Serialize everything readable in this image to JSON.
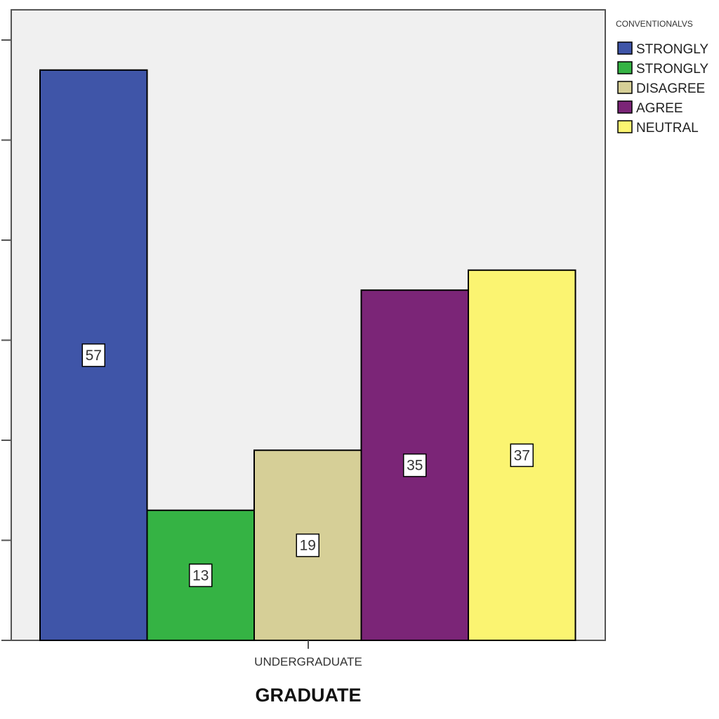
{
  "chart_data": {
    "type": "bar",
    "xlabel": "GRADUATE",
    "ylabel": "",
    "categories": [
      "UNDERGRADUATE"
    ],
    "ylim": [
      0,
      60
    ],
    "y_ticks": [
      0,
      10,
      20,
      30,
      40,
      50,
      60
    ],
    "grid": false,
    "legend_position": "right",
    "legend_title": "CONVENTIONALVS",
    "series": [
      {
        "name": "STRONGLY",
        "values": [
          57
        ],
        "color": "#3f55a8",
        "label": "57"
      },
      {
        "name": "STRONGLY",
        "values": [
          13
        ],
        "color": "#35b344",
        "label": "13"
      },
      {
        "name": "DISAGREE",
        "values": [
          19
        ],
        "color": "#d6cf97",
        "label": "19"
      },
      {
        "name": "AGREE",
        "values": [
          35
        ],
        "color": "#7b2577",
        "label": "35"
      },
      {
        "name": "NEUTRAL",
        "values": [
          37
        ],
        "color": "#fbf471",
        "label": "37"
      }
    ]
  }
}
